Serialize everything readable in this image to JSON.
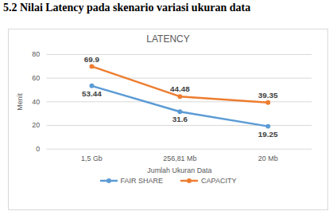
{
  "chart_data": {
    "type": "line",
    "title": "LATENCY",
    "annotations": [
      "5.2 Nilai Latency pada skenario variasi ukuran data"
    ],
    "xlabel": "Jumlah Ukuran Data",
    "ylabel": "Menit",
    "categories": [
      "1,5 Gb",
      "256,81 Mb",
      "20 Mb"
    ],
    "series": [
      {
        "name": "FAIR SHARE",
        "color": "#5b9bd5",
        "values": [
          53.44,
          31.6,
          19.25
        ],
        "marker": "circle"
      },
      {
        "name": "CAPACITY",
        "color": "#ed7d31",
        "values": [
          69.9,
          44.48,
          39.35
        ],
        "marker": "circle"
      }
    ],
    "ylim": [
      0,
      80
    ],
    "yticks": [
      0,
      20,
      40,
      60,
      80
    ],
    "grid": true,
    "legend": "bottom",
    "data_labels": true
  }
}
